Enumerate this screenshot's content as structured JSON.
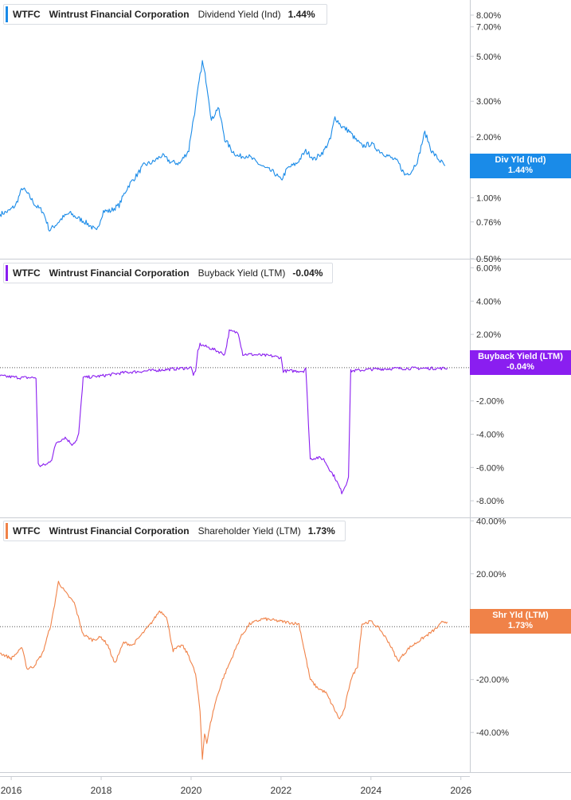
{
  "legends": [
    {
      "ticker": "WTFC",
      "company": "Wintrust Financial Corporation",
      "metric": "Dividend Yield (Ind)",
      "value": "1.44%",
      "color": "#1a8be8"
    },
    {
      "ticker": "WTFC",
      "company": "Wintrust Financial Corporation",
      "metric": "Buyback Yield (LTM)",
      "value": "-0.04%",
      "color": "#8a1ef0"
    },
    {
      "ticker": "WTFC",
      "company": "Wintrust Financial Corporation",
      "metric": "Shareholder Yield (LTM)",
      "value": "1.73%",
      "color": "#f08248"
    }
  ],
  "badges": [
    {
      "label": "Div Yld (Ind)",
      "value": "1.44%"
    },
    {
      "label": "Buyback Yield (LTM)",
      "value": "-0.04%"
    },
    {
      "label": "Shr Yld (LTM)",
      "value": "1.73%"
    }
  ],
  "chart_data": [
    {
      "type": "line",
      "name": "Dividend Yield (Ind)",
      "scale": "log",
      "color": "#1a8be8",
      "ylim": [
        0.5,
        9.5
      ],
      "yticks": [
        8.0,
        7.0,
        5.0,
        3.0,
        2.0,
        1.0,
        0.76,
        0.5
      ],
      "ytick_labels": [
        "8.00%",
        "7.00%",
        "5.00%",
        "3.00%",
        "2.00%",
        "1.00%",
        "0.76%",
        "0.50%"
      ],
      "series": [
        {
          "name": "Dividend Yield (Ind)",
          "x": [
            2015.75,
            2015.95,
            2016.1,
            2016.25,
            2016.4,
            2016.55,
            2016.7,
            2016.85,
            2017.0,
            2017.15,
            2017.3,
            2017.45,
            2017.6,
            2017.75,
            2017.9,
            2018.05,
            2018.2,
            2018.4,
            2018.6,
            2018.8,
            2018.95,
            2019.15,
            2019.35,
            2019.55,
            2019.75,
            2019.95,
            2020.1,
            2020.2,
            2020.25,
            2020.35,
            2020.45,
            2020.6,
            2020.75,
            2020.9,
            2021.05,
            2021.25,
            2021.45,
            2021.65,
            2021.85,
            2022.0,
            2022.15,
            2022.35,
            2022.55,
            2022.75,
            2022.95,
            2023.1,
            2023.2,
            2023.35,
            2023.5,
            2023.65,
            2023.8,
            2024.0,
            2024.2,
            2024.4,
            2024.6,
            2024.75,
            2024.9,
            2025.05,
            2025.2,
            2025.35,
            2025.5,
            2025.65
          ],
          "y": [
            0.83,
            0.86,
            0.92,
            1.12,
            1.02,
            0.91,
            0.86,
            0.69,
            0.74,
            0.8,
            0.84,
            0.8,
            0.77,
            0.73,
            0.68,
            0.86,
            0.86,
            0.92,
            1.14,
            1.3,
            1.45,
            1.5,
            1.62,
            1.5,
            1.48,
            1.72,
            2.8,
            4.0,
            4.7,
            3.6,
            2.4,
            2.8,
            1.95,
            1.72,
            1.6,
            1.62,
            1.5,
            1.4,
            1.33,
            1.22,
            1.4,
            1.48,
            1.7,
            1.55,
            1.7,
            1.95,
            2.5,
            2.25,
            2.15,
            1.95,
            1.8,
            1.85,
            1.7,
            1.6,
            1.5,
            1.3,
            1.35,
            1.55,
            2.1,
            1.7,
            1.55,
            1.44
          ]
        }
      ]
    },
    {
      "type": "line",
      "name": "Buyback Yield (LTM)",
      "color": "#8a1ef0",
      "ylim": [
        -9.0,
        6.5
      ],
      "yticks": [
        6.0,
        4.0,
        2.0,
        -2.0,
        -4.0,
        -6.0,
        -8.0
      ],
      "ytick_labels": [
        "6.00%",
        "4.00%",
        "2.00%",
        "-2.00%",
        "-4.00%",
        "-6.00%",
        "-8.00%"
      ],
      "series": [
        {
          "name": "Buyback Yield (LTM)",
          "x": [
            2015.75,
            2016.2,
            2016.55,
            2016.6,
            2016.65,
            2016.8,
            2016.9,
            2017.0,
            2017.2,
            2017.35,
            2017.45,
            2017.5,
            2017.6,
            2018.0,
            2018.5,
            2019.0,
            2019.5,
            2020.0,
            2020.05,
            2020.1,
            2020.15,
            2020.2,
            2020.5,
            2020.75,
            2020.85,
            2021.05,
            2021.15,
            2021.3,
            2021.8,
            2022.0,
            2022.05,
            2022.5,
            2022.55,
            2022.65,
            2022.8,
            2022.95,
            2023.1,
            2023.2,
            2023.35,
            2023.45,
            2023.5,
            2023.55,
            2024.0,
            2024.5,
            2025.0,
            2025.5,
            2025.7
          ],
          "y": [
            -0.5,
            -0.6,
            -0.6,
            -5.8,
            -5.9,
            -5.8,
            -5.5,
            -4.5,
            -4.2,
            -4.6,
            -4.4,
            -4.0,
            -0.6,
            -0.5,
            -0.3,
            -0.2,
            -0.1,
            0.0,
            -0.4,
            -0.3,
            1.0,
            1.4,
            1.1,
            0.8,
            2.2,
            2.1,
            0.8,
            0.8,
            0.7,
            0.6,
            -0.2,
            -0.2,
            0.0,
            -5.5,
            -5.4,
            -5.5,
            -6.2,
            -6.6,
            -7.5,
            -7.0,
            -6.5,
            -0.2,
            -0.1,
            -0.05,
            -0.04,
            -0.04,
            -0.04
          ]
        }
      ]
    },
    {
      "type": "line",
      "name": "Shareholder Yield (LTM)",
      "color": "#f08248",
      "ylim": [
        -55.0,
        41.0
      ],
      "yticks": [
        40.0,
        20.0,
        0.0,
        -20.0,
        -40.0
      ],
      "ytick_labels": [
        "40.00%",
        "20.00%",
        "0.00%",
        "-20.00%",
        "-40.00%"
      ],
      "series": [
        {
          "name": "Shareholder Yield (LTM)",
          "x": [
            2015.75,
            2016.0,
            2016.25,
            2016.35,
            2016.5,
            2016.7,
            2016.9,
            2017.05,
            2017.2,
            2017.4,
            2017.6,
            2017.8,
            2018.0,
            2018.15,
            2018.3,
            2018.5,
            2018.7,
            2018.9,
            2019.1,
            2019.3,
            2019.45,
            2019.6,
            2019.8,
            2019.95,
            2020.1,
            2020.2,
            2020.25,
            2020.3,
            2020.35,
            2020.45,
            2020.55,
            2020.7,
            2020.9,
            2021.1,
            2021.3,
            2021.6,
            2022.0,
            2022.4,
            2022.65,
            2022.8,
            2023.0,
            2023.15,
            2023.3,
            2023.4,
            2023.55,
            2023.7,
            2023.8,
            2024.0,
            2024.2,
            2024.4,
            2024.6,
            2024.85,
            2025.1,
            2025.35,
            2025.5,
            2025.6,
            2025.7
          ],
          "y": [
            -10,
            -12,
            -8,
            -16,
            -15,
            -10,
            2,
            17,
            13,
            9,
            -3,
            -5,
            -4,
            -7,
            -14,
            -6,
            -7,
            -3,
            1,
            6,
            4,
            -9,
            -7,
            -11,
            -18,
            -32,
            -50,
            -40,
            -44,
            -35,
            -28,
            -20,
            -12,
            -4,
            1,
            3,
            2,
            1,
            -20,
            -23,
            -25,
            -30,
            -35,
            -32,
            -20,
            -15,
            1,
            2,
            -1,
            -6,
            -13,
            -8,
            -5,
            -2,
            0,
            2,
            1.73
          ]
        }
      ]
    }
  ],
  "x_axis": {
    "xlim": [
      2015.75,
      2026.2
    ],
    "ticks": [
      2016,
      2018,
      2020,
      2022,
      2024,
      2026
    ],
    "tick_labels": [
      "2016",
      "2018",
      "2020",
      "2022",
      "2024",
      "2026"
    ]
  }
}
